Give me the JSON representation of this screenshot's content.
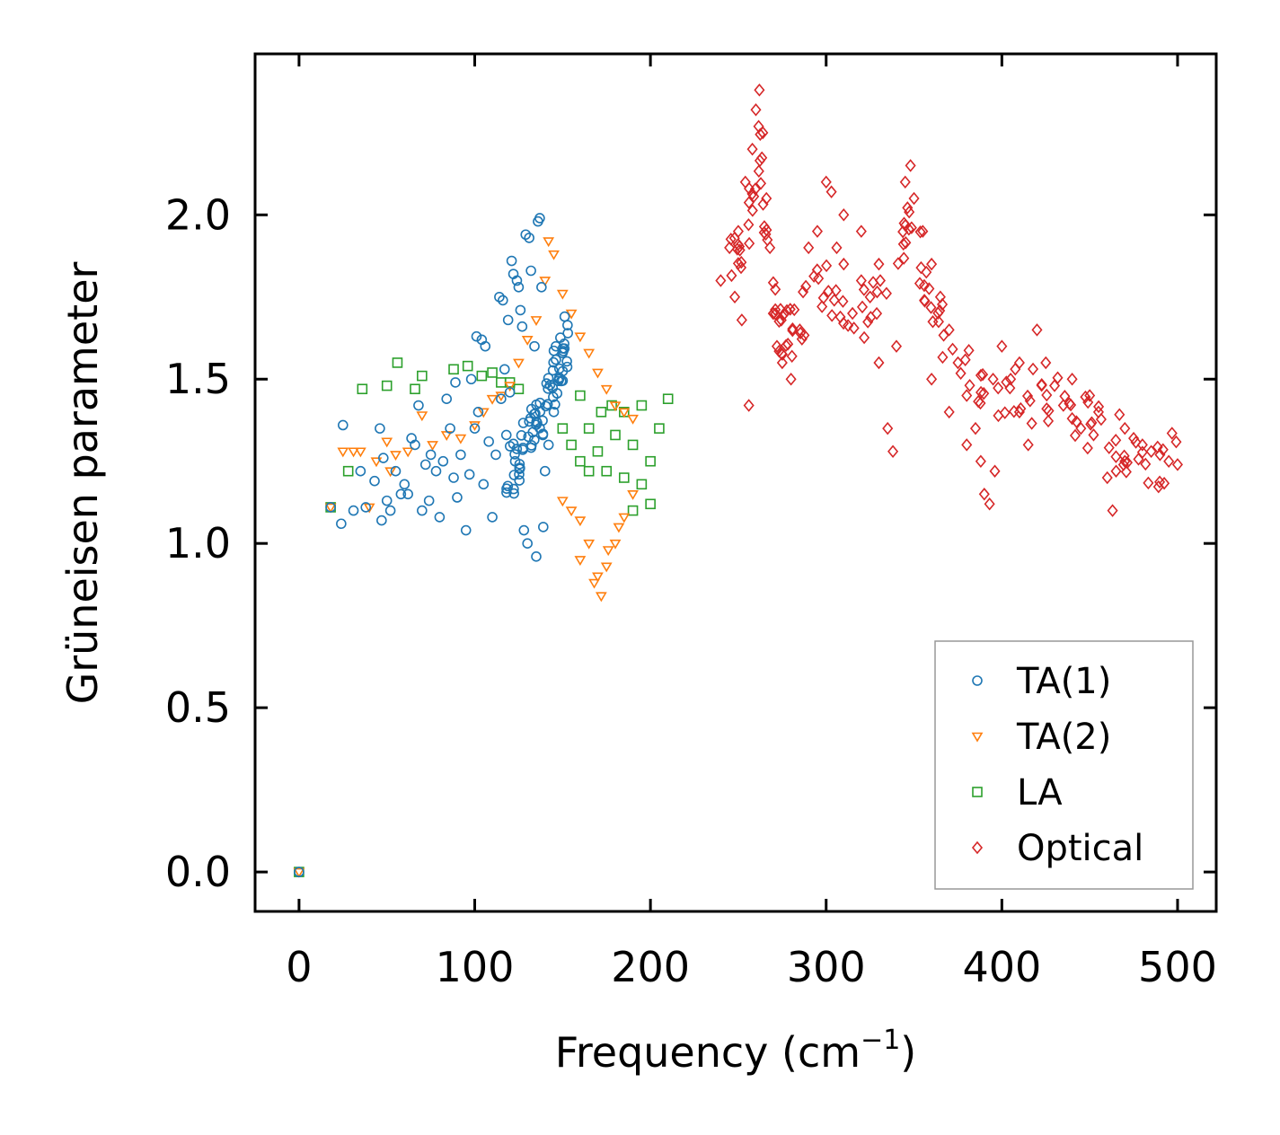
{
  "chart_data": {
    "type": "scatter",
    "title": "",
    "xlabel": "Frequency (cm",
    "xlabel_sup": "−1",
    "xlabel_tail": ")",
    "ylabel": "Grüneisen parameter",
    "xlim": [
      -25,
      522
    ],
    "ylim": [
      -0.12,
      2.49
    ],
    "xticks": [
      0,
      100,
      200,
      300,
      400,
      500
    ],
    "xtick_labels": [
      "0",
      "100",
      "200",
      "300",
      "400",
      "500"
    ],
    "yticks": [
      0.0,
      0.5,
      1.0,
      1.5,
      2.0
    ],
    "ytick_labels": [
      "0.0",
      "0.5",
      "1.0",
      "1.5",
      "2.0"
    ],
    "grid": false,
    "legend_position": "bottom-right",
    "series": [
      {
        "name": "TA(1)",
        "marker": "circle",
        "color": "#1f77b4",
        "points": [
          [
            0,
            0
          ],
          [
            18,
            1.11
          ],
          [
            25,
            1.36
          ],
          [
            24,
            1.06
          ],
          [
            31,
            1.1
          ],
          [
            35,
            1.22
          ],
          [
            38,
            1.11
          ],
          [
            43,
            1.19
          ],
          [
            46,
            1.35
          ],
          [
            47,
            1.07
          ],
          [
            48,
            1.26
          ],
          [
            50,
            1.13
          ],
          [
            52,
            1.1
          ],
          [
            55,
            1.22
          ],
          [
            58,
            1.15
          ],
          [
            60,
            1.18
          ],
          [
            62,
            1.15
          ],
          [
            64,
            1.32
          ],
          [
            66,
            1.3
          ],
          [
            68,
            1.42
          ],
          [
            70,
            1.1
          ],
          [
            72,
            1.24
          ],
          [
            74,
            1.13
          ],
          [
            75,
            1.27
          ],
          [
            78,
            1.22
          ],
          [
            80,
            1.08
          ],
          [
            82,
            1.25
          ],
          [
            84,
            1.44
          ],
          [
            86,
            1.35
          ],
          [
            88,
            1.2
          ],
          [
            89,
            1.49
          ],
          [
            90,
            1.14
          ],
          [
            92,
            1.27
          ],
          [
            95,
            1.04
          ],
          [
            97,
            1.21
          ],
          [
            98,
            1.5
          ],
          [
            100,
            1.35
          ],
          [
            101,
            1.63
          ],
          [
            102,
            1.4
          ],
          [
            104,
            1.62
          ],
          [
            105,
            1.18
          ],
          [
            106,
            1.6
          ],
          [
            108,
            1.31
          ],
          [
            110,
            1.08
          ],
          [
            112,
            1.27
          ],
          [
            114,
            1.75
          ],
          [
            115,
            1.44
          ],
          [
            116,
            1.74
          ],
          [
            117,
            1.53
          ],
          [
            118,
            1.33
          ],
          [
            119,
            1.68
          ],
          [
            120,
            1.46
          ],
          [
            121,
            1.86
          ],
          [
            122,
            1.82
          ],
          [
            123,
            1.25
          ],
          [
            124,
            1.8
          ],
          [
            125,
            1.78
          ],
          [
            126,
            1.71
          ],
          [
            127,
            1.66
          ],
          [
            128,
            1.04
          ],
          [
            129,
            1.94
          ],
          [
            130,
            1.0
          ],
          [
            131,
            1.93
          ],
          [
            132,
            1.83
          ],
          [
            134,
            1.6
          ],
          [
            135,
            0.96
          ],
          [
            136,
            1.98
          ],
          [
            137,
            1.99
          ],
          [
            138,
            1.78
          ],
          [
            139,
            1.05
          ],
          [
            140,
            1.22
          ],
          [
            142,
            1.3
          ],
          [
            145,
            1.4
          ],
          [
            148,
            1.5
          ],
          [
            150,
            1.58
          ],
          [
            153,
            1.64
          ]
        ],
        "dense_band": [
          [
            118,
            1.2
          ],
          [
            125,
            1.25
          ],
          [
            130,
            1.32
          ],
          [
            135,
            1.37
          ],
          [
            140,
            1.42
          ],
          [
            145,
            1.5
          ],
          [
            150,
            1.58
          ],
          [
            154,
            1.65
          ]
        ]
      },
      {
        "name": "TA(2)",
        "marker": "triangle-down",
        "color": "#ff7f0e",
        "points": [
          [
            0,
            0
          ],
          [
            18,
            1.11
          ],
          [
            25,
            1.28
          ],
          [
            31,
            1.28
          ],
          [
            35,
            1.28
          ],
          [
            40,
            1.11
          ],
          [
            44,
            1.25
          ],
          [
            50,
            1.31
          ],
          [
            52,
            1.22
          ],
          [
            55,
            1.27
          ],
          [
            62,
            1.28
          ],
          [
            70,
            1.39
          ],
          [
            76,
            1.3
          ],
          [
            84,
            1.33
          ],
          [
            92,
            1.32
          ],
          [
            100,
            1.36
          ],
          [
            105,
            1.4
          ],
          [
            110,
            1.44
          ],
          [
            115,
            1.45
          ],
          [
            120,
            1.48
          ],
          [
            125,
            1.55
          ],
          [
            130,
            1.62
          ],
          [
            135,
            1.68
          ],
          [
            140,
            1.8
          ],
          [
            142,
            1.92
          ],
          [
            145,
            1.88
          ],
          [
            150,
            1.76
          ],
          [
            155,
            1.7
          ],
          [
            160,
            1.63
          ],
          [
            165,
            1.58
          ],
          [
            170,
            1.52
          ],
          [
            175,
            1.47
          ],
          [
            180,
            1.42
          ],
          [
            185,
            1.4
          ],
          [
            190,
            1.38
          ],
          [
            150,
            1.13
          ],
          [
            155,
            1.1
          ],
          [
            160,
            1.07
          ],
          [
            165,
            1.0
          ],
          [
            170,
            0.9
          ],
          [
            172,
            0.84
          ],
          [
            175,
            0.93
          ],
          [
            180,
            1.0
          ],
          [
            185,
            1.08
          ],
          [
            190,
            1.15
          ],
          [
            160,
            0.95
          ],
          [
            168,
            0.88
          ],
          [
            176,
            0.98
          ],
          [
            182,
            1.05
          ]
        ]
      },
      {
        "name": "LA",
        "marker": "square",
        "color": "#2ca02c",
        "points": [
          [
            0,
            0
          ],
          [
            18,
            1.11
          ],
          [
            28,
            1.22
          ],
          [
            36,
            1.47
          ],
          [
            50,
            1.48
          ],
          [
            56,
            1.55
          ],
          [
            66,
            1.47
          ],
          [
            70,
            1.51
          ],
          [
            88,
            1.53
          ],
          [
            96,
            1.54
          ],
          [
            104,
            1.51
          ],
          [
            110,
            1.52
          ],
          [
            115,
            1.49
          ],
          [
            120,
            1.49
          ],
          [
            125,
            1.47
          ],
          [
            150,
            1.35
          ],
          [
            155,
            1.3
          ],
          [
            160,
            1.25
          ],
          [
            165,
            1.35
          ],
          [
            170,
            1.28
          ],
          [
            175,
            1.22
          ],
          [
            180,
            1.33
          ],
          [
            185,
            1.4
          ],
          [
            190,
            1.3
          ],
          [
            195,
            1.18
          ],
          [
            200,
            1.25
          ],
          [
            205,
            1.35
          ],
          [
            210,
            1.44
          ],
          [
            200,
            1.12
          ],
          [
            195,
            1.42
          ],
          [
            190,
            1.1
          ],
          [
            185,
            1.2
          ],
          [
            178,
            1.42
          ],
          [
            172,
            1.4
          ],
          [
            165,
            1.22
          ],
          [
            160,
            1.45
          ]
        ]
      },
      {
        "name": "Optical",
        "marker": "diamond",
        "color": "#d62728",
        "points": [
          [
            240,
            1.8
          ],
          [
            245,
            1.9
          ],
          [
            248,
            1.75
          ],
          [
            250,
            1.95
          ],
          [
            252,
            1.68
          ],
          [
            254,
            2.1
          ],
          [
            256,
            1.42
          ],
          [
            258,
            2.2
          ],
          [
            260,
            2.32
          ],
          [
            262,
            2.38
          ],
          [
            264,
            2.25
          ],
          [
            266,
            2.05
          ],
          [
            268,
            1.9
          ],
          [
            270,
            1.7
          ],
          [
            272,
            1.6
          ],
          [
            275,
            1.55
          ],
          [
            280,
            1.5
          ],
          [
            285,
            1.65
          ],
          [
            290,
            1.9
          ],
          [
            295,
            1.95
          ],
          [
            300,
            2.1
          ],
          [
            303,
            2.07
          ],
          [
            306,
            1.9
          ],
          [
            310,
            1.85
          ],
          [
            315,
            1.7
          ],
          [
            320,
            1.8
          ],
          [
            325,
            1.75
          ],
          [
            330,
            1.55
          ],
          [
            335,
            1.35
          ],
          [
            338,
            1.28
          ],
          [
            340,
            1.6
          ],
          [
            345,
            2.1
          ],
          [
            348,
            2.15
          ],
          [
            350,
            2.05
          ],
          [
            355,
            1.95
          ],
          [
            360,
            1.85
          ],
          [
            365,
            1.75
          ],
          [
            370,
            1.65
          ],
          [
            375,
            1.55
          ],
          [
            380,
            1.45
          ],
          [
            385,
            1.35
          ],
          [
            388,
            1.25
          ],
          [
            390,
            1.15
          ],
          [
            393,
            1.12
          ],
          [
            396,
            1.22
          ],
          [
            400,
            1.6
          ],
          [
            405,
            1.5
          ],
          [
            410,
            1.4
          ],
          [
            415,
            1.3
          ],
          [
            420,
            1.65
          ],
          [
            425,
            1.55
          ],
          [
            430,
            1.48
          ],
          [
            435,
            1.42
          ],
          [
            440,
            1.38
          ],
          [
            445,
            1.35
          ],
          [
            450,
            1.45
          ],
          [
            455,
            1.4
          ],
          [
            460,
            1.2
          ],
          [
            463,
            1.1
          ],
          [
            465,
            1.22
          ],
          [
            470,
            1.35
          ],
          [
            475,
            1.32
          ],
          [
            480,
            1.3
          ],
          [
            485,
            1.28
          ],
          [
            490,
            1.27
          ],
          [
            495,
            1.25
          ],
          [
            500,
            1.24
          ],
          [
            310,
            2.0
          ],
          [
            320,
            1.95
          ],
          [
            330,
            1.85
          ],
          [
            360,
            1.5
          ],
          [
            370,
            1.4
          ],
          [
            380,
            1.3
          ],
          [
            395,
            1.5
          ],
          [
            410,
            1.55
          ],
          [
            440,
            1.5
          ],
          [
            470,
            1.25
          ]
        ],
        "dense_band": [
          [
            245,
            1.85
          ],
          [
            255,
            1.95
          ],
          [
            262,
            2.2
          ],
          [
            268,
            1.8
          ],
          [
            275,
            1.6
          ],
          [
            285,
            1.7
          ],
          [
            300,
            1.8
          ],
          [
            320,
            1.7
          ],
          [
            340,
            1.75
          ],
          [
            348,
            2.0
          ],
          [
            360,
            1.7
          ],
          [
            380,
            1.55
          ],
          [
            400,
            1.45
          ],
          [
            420,
            1.45
          ],
          [
            440,
            1.4
          ],
          [
            460,
            1.32
          ],
          [
            480,
            1.28
          ],
          [
            500,
            1.24
          ]
        ]
      }
    ]
  }
}
